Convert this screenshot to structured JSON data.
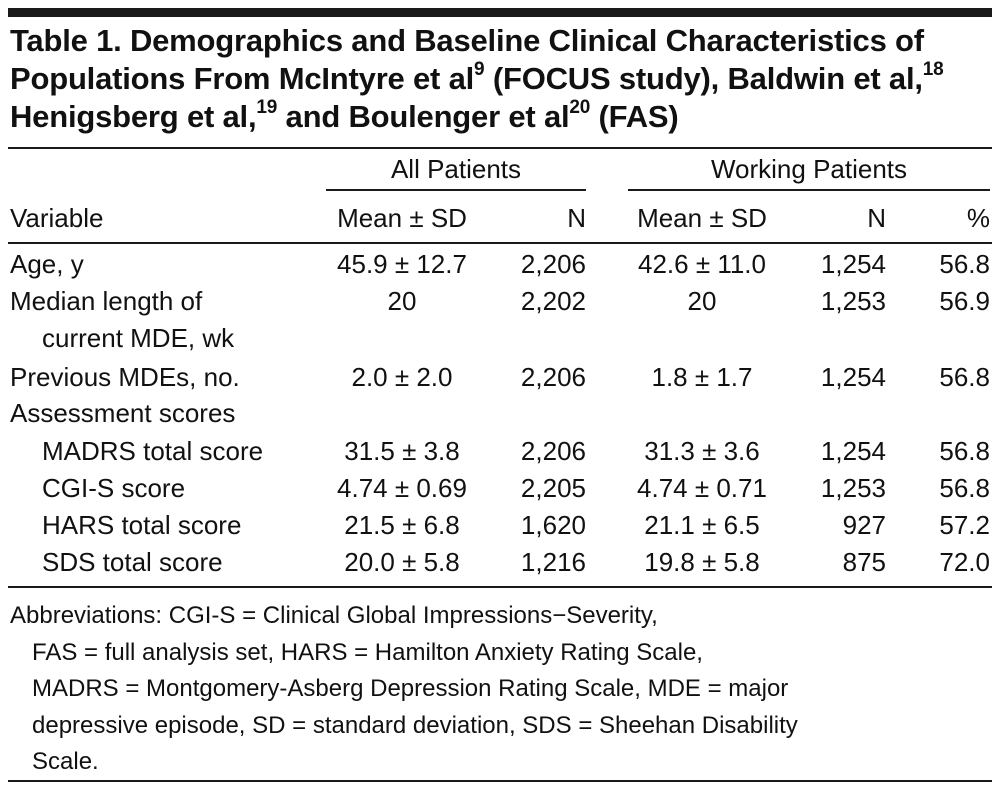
{
  "table": {
    "title_parts": {
      "p1": "Table 1. Demographics and Baseline Clinical Characteristics of Populations From McIntyre et al",
      "s1": "9",
      "p2": " (FOCUS study), Baldwin et al,",
      "s2": "18",
      "p3": " Henigsberg et al,",
      "s3": "19",
      "p4": " and Boulenger et al",
      "s4": "20",
      "p5": " (FAS)"
    },
    "group_headers": [
      "All Patients",
      "Working Patients"
    ],
    "columns": [
      "Variable",
      "Mean ± SD",
      "N",
      "Mean ± SD",
      "N",
      "%"
    ],
    "rows": [
      {
        "label": "Age, y",
        "label2": "",
        "all_mean": "45.9 ± 12.7",
        "all_n": "2,206",
        "work_mean": "42.6 ± 11.0",
        "work_n": "1,254",
        "pct": "56.8"
      },
      {
        "label": "Median length of",
        "label2": "current MDE, wk",
        "all_mean": "20",
        "all_n": "2,202",
        "work_mean": "20",
        "work_n": "1,253",
        "pct": "56.9"
      },
      {
        "label": "Previous MDEs, no.",
        "label2": "",
        "all_mean": "2.0 ± 2.0",
        "all_n": "2,206",
        "work_mean": "1.8 ± 1.7",
        "work_n": "1,254",
        "pct": "56.8"
      },
      {
        "label": "Assessment scores",
        "label2": "",
        "all_mean": "",
        "all_n": "",
        "work_mean": "",
        "work_n": "",
        "pct": ""
      },
      {
        "label": "MADRS total score",
        "label2": "",
        "all_mean": "31.5 ± 3.8",
        "all_n": "2,206",
        "work_mean": "31.3 ± 3.6",
        "work_n": "1,254",
        "pct": "56.8"
      },
      {
        "label": "CGI-S score",
        "label2": "",
        "all_mean": "4.74 ± 0.69",
        "all_n": "2,205",
        "work_mean": "4.74 ± 0.71",
        "work_n": "1,253",
        "pct": "56.8"
      },
      {
        "label": "HARS total score",
        "label2": "",
        "all_mean": "21.5 ± 6.8",
        "all_n": "1,620",
        "work_mean": "21.1 ± 6.5",
        "work_n": "927",
        "pct": "57.2"
      },
      {
        "label": "SDS total score",
        "label2": "",
        "all_mean": "20.0 ± 5.8",
        "all_n": "1,216",
        "work_mean": "19.8 ± 5.8",
        "work_n": "875",
        "pct": "72.0"
      }
    ],
    "footnote_lines": [
      "Abbreviations: CGI-S = Clinical Global Impressions−Severity,",
      "FAS = full analysis set, HARS = Hamilton Anxiety Rating Scale,",
      "MADRS = Montgomery-Asberg Depression Rating Scale, MDE = major",
      "depressive episode, SD = standard deviation, SDS = Sheehan Disability",
      "Scale."
    ]
  }
}
